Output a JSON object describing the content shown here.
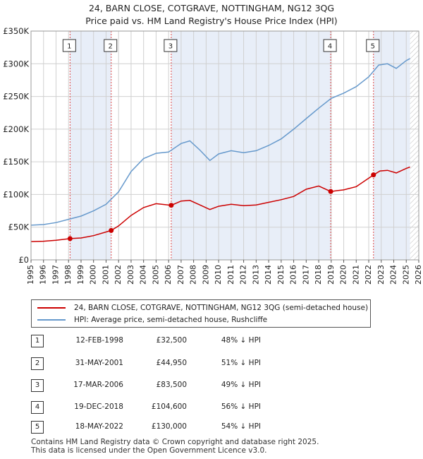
{
  "title_line1": "24, BARN CLOSE, COTGRAVE, NOTTINGHAM, NG12 3QG",
  "title_line2": "Price paid vs. HM Land Registry's House Price Index (HPI)",
  "chart_data": {
    "type": "line",
    "xlim": [
      1995,
      2026
    ],
    "ylim": [
      0,
      350000
    ],
    "y_ticks": [
      0,
      50000,
      100000,
      150000,
      200000,
      250000,
      300000,
      350000
    ],
    "y_tick_labels": [
      "£0",
      "£50K",
      "£100K",
      "£150K",
      "£200K",
      "£250K",
      "£300K",
      "£350K"
    ],
    "x_ticks": [
      1995,
      1996,
      1997,
      1998,
      1999,
      2000,
      2001,
      2002,
      2003,
      2004,
      2005,
      2006,
      2007,
      2008,
      2009,
      2010,
      2011,
      2012,
      2013,
      2014,
      2015,
      2016,
      2017,
      2018,
      2019,
      2020,
      2021,
      2022,
      2023,
      2024,
      2025,
      2026
    ],
    "x_tick_labels": [
      "1995",
      "1996",
      "1997",
      "1998",
      "1999",
      "2000",
      "2001",
      "2002",
      "2003",
      "2004",
      "2005",
      "2006",
      "2007",
      "2008",
      "2009",
      "2010",
      "2011",
      "2012",
      "2013",
      "2014",
      "2015",
      "2016",
      "2017",
      "2018",
      "2019",
      "2020",
      "2021",
      "2022",
      "2023",
      "2024",
      "2025",
      "2026"
    ],
    "grid": true,
    "shaded_periods": [
      [
        1998.12,
        2001.41
      ],
      [
        2006.21,
        2018.96
      ],
      [
        2022.38,
        2025.3
      ]
    ],
    "forecast_hatch_start": 2025.3,
    "series": [
      {
        "name": "24, BARN CLOSE, COTGRAVE, NOTTINGHAM, NG12 3QG (semi-detached house)",
        "color": "#cc0000",
        "x": [
          1995,
          1996,
          1997,
          1998.12,
          1999,
          2000,
          2001.41,
          2002,
          2003,
          2004,
          2005,
          2006.21,
          2007,
          2007.7,
          2008.5,
          2009.3,
          2010,
          2011,
          2012,
          2013,
          2014,
          2015,
          2016,
          2017,
          2018,
          2018.96,
          2019.5,
          2020,
          2021,
          2022.38,
          2022.9,
          2023.5,
          2024.2,
          2025,
          2025.3
        ],
        "y": [
          28000,
          28500,
          30000,
          32500,
          33500,
          37000,
          44950,
          52000,
          68000,
          80000,
          86000,
          83500,
          90000,
          91000,
          84000,
          77000,
          82000,
          85000,
          83000,
          84000,
          88000,
          92000,
          97000,
          108000,
          113000,
          104600,
          106000,
          107000,
          112000,
          130000,
          136000,
          137000,
          133000,
          140000,
          142000
        ]
      },
      {
        "name": "HPI: Average price, semi-detached house, Rushcliffe",
        "color": "#6699cc",
        "x": [
          1995,
          1996,
          1997,
          1998,
          1999,
          2000,
          2001,
          2002,
          2003,
          2004,
          2005,
          2006,
          2007,
          2007.7,
          2008.5,
          2009.3,
          2010,
          2011,
          2012,
          2013,
          2014,
          2015,
          2016,
          2017,
          2018,
          2019,
          2020,
          2021,
          2022,
          2022.8,
          2023.5,
          2024.2,
          2025,
          2025.3
        ],
        "y": [
          53000,
          54000,
          57000,
          62000,
          67000,
          75000,
          85000,
          104000,
          135000,
          155000,
          163000,
          165000,
          178000,
          182000,
          168000,
          152000,
          162000,
          167000,
          164000,
          167000,
          175000,
          185000,
          200000,
          216000,
          232000,
          247000,
          255000,
          265000,
          280000,
          298000,
          300000,
          293000,
          305000,
          308000
        ]
      }
    ],
    "sales": [
      {
        "label": "1",
        "x": 1998.12,
        "y": 32500
      },
      {
        "label": "2",
        "x": 2001.41,
        "y": 44950
      },
      {
        "label": "3",
        "x": 2006.21,
        "y": 83500
      },
      {
        "label": "4",
        "x": 2018.96,
        "y": 104600
      },
      {
        "label": "5",
        "x": 2022.38,
        "y": 130000
      }
    ]
  },
  "legend": {
    "property_label": "24, BARN CLOSE, COTGRAVE, NOTTINGHAM, NG12 3QG (semi-detached house)",
    "hpi_label": "HPI: Average price, semi-detached house, Rushcliffe"
  },
  "transactions": [
    {
      "num": "1",
      "date": "12-FEB-1998",
      "price": "£32,500",
      "hpi": "48% ↓ HPI"
    },
    {
      "num": "2",
      "date": "31-MAY-2001",
      "price": "£44,950",
      "hpi": "51% ↓ HPI"
    },
    {
      "num": "3",
      "date": "17-MAR-2006",
      "price": "£83,500",
      "hpi": "49% ↓ HPI"
    },
    {
      "num": "4",
      "date": "19-DEC-2018",
      "price": "£104,600",
      "hpi": "56% ↓ HPI"
    },
    {
      "num": "5",
      "date": "18-MAY-2022",
      "price": "£130,000",
      "hpi": "54% ↓ HPI"
    }
  ],
  "footer_line1": "Contains HM Land Registry data © Crown copyright and database right 2025.",
  "footer_line2": "This data is licensed under the Open Government Licence v3.0."
}
